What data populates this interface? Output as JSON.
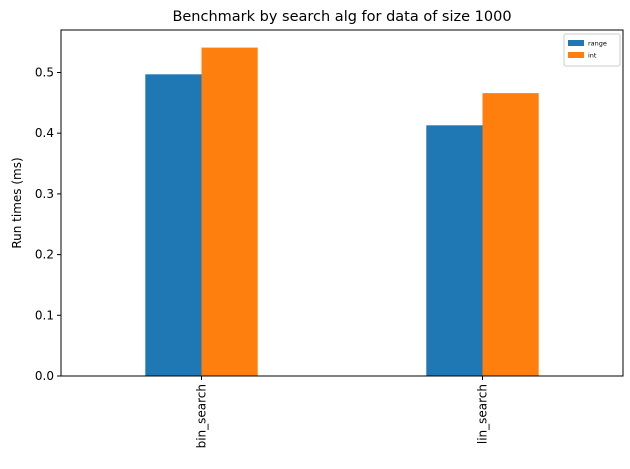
{
  "chart_data": {
    "type": "bar",
    "title": "Benchmark by search alg for data of size 1000",
    "xlabel": "",
    "ylabel": "Run times (ms)",
    "categories": [
      "bin_search",
      "lin_search"
    ],
    "series": [
      {
        "name": "range",
        "values": [
          0.497,
          0.413
        ],
        "color": "#1f77b4"
      },
      {
        "name": "int",
        "values": [
          0.541,
          0.466
        ],
        "color": "#ff7f0e"
      }
    ],
    "ylim": [
      0,
      0.57
    ],
    "yticks": [
      0.0,
      0.1,
      0.2,
      0.3,
      0.4,
      0.5
    ],
    "ytick_labels": [
      "0.0",
      "0.1",
      "0.2",
      "0.3",
      "0.4",
      "0.5"
    ],
    "legend_position": "top-right",
    "grid": false
  }
}
